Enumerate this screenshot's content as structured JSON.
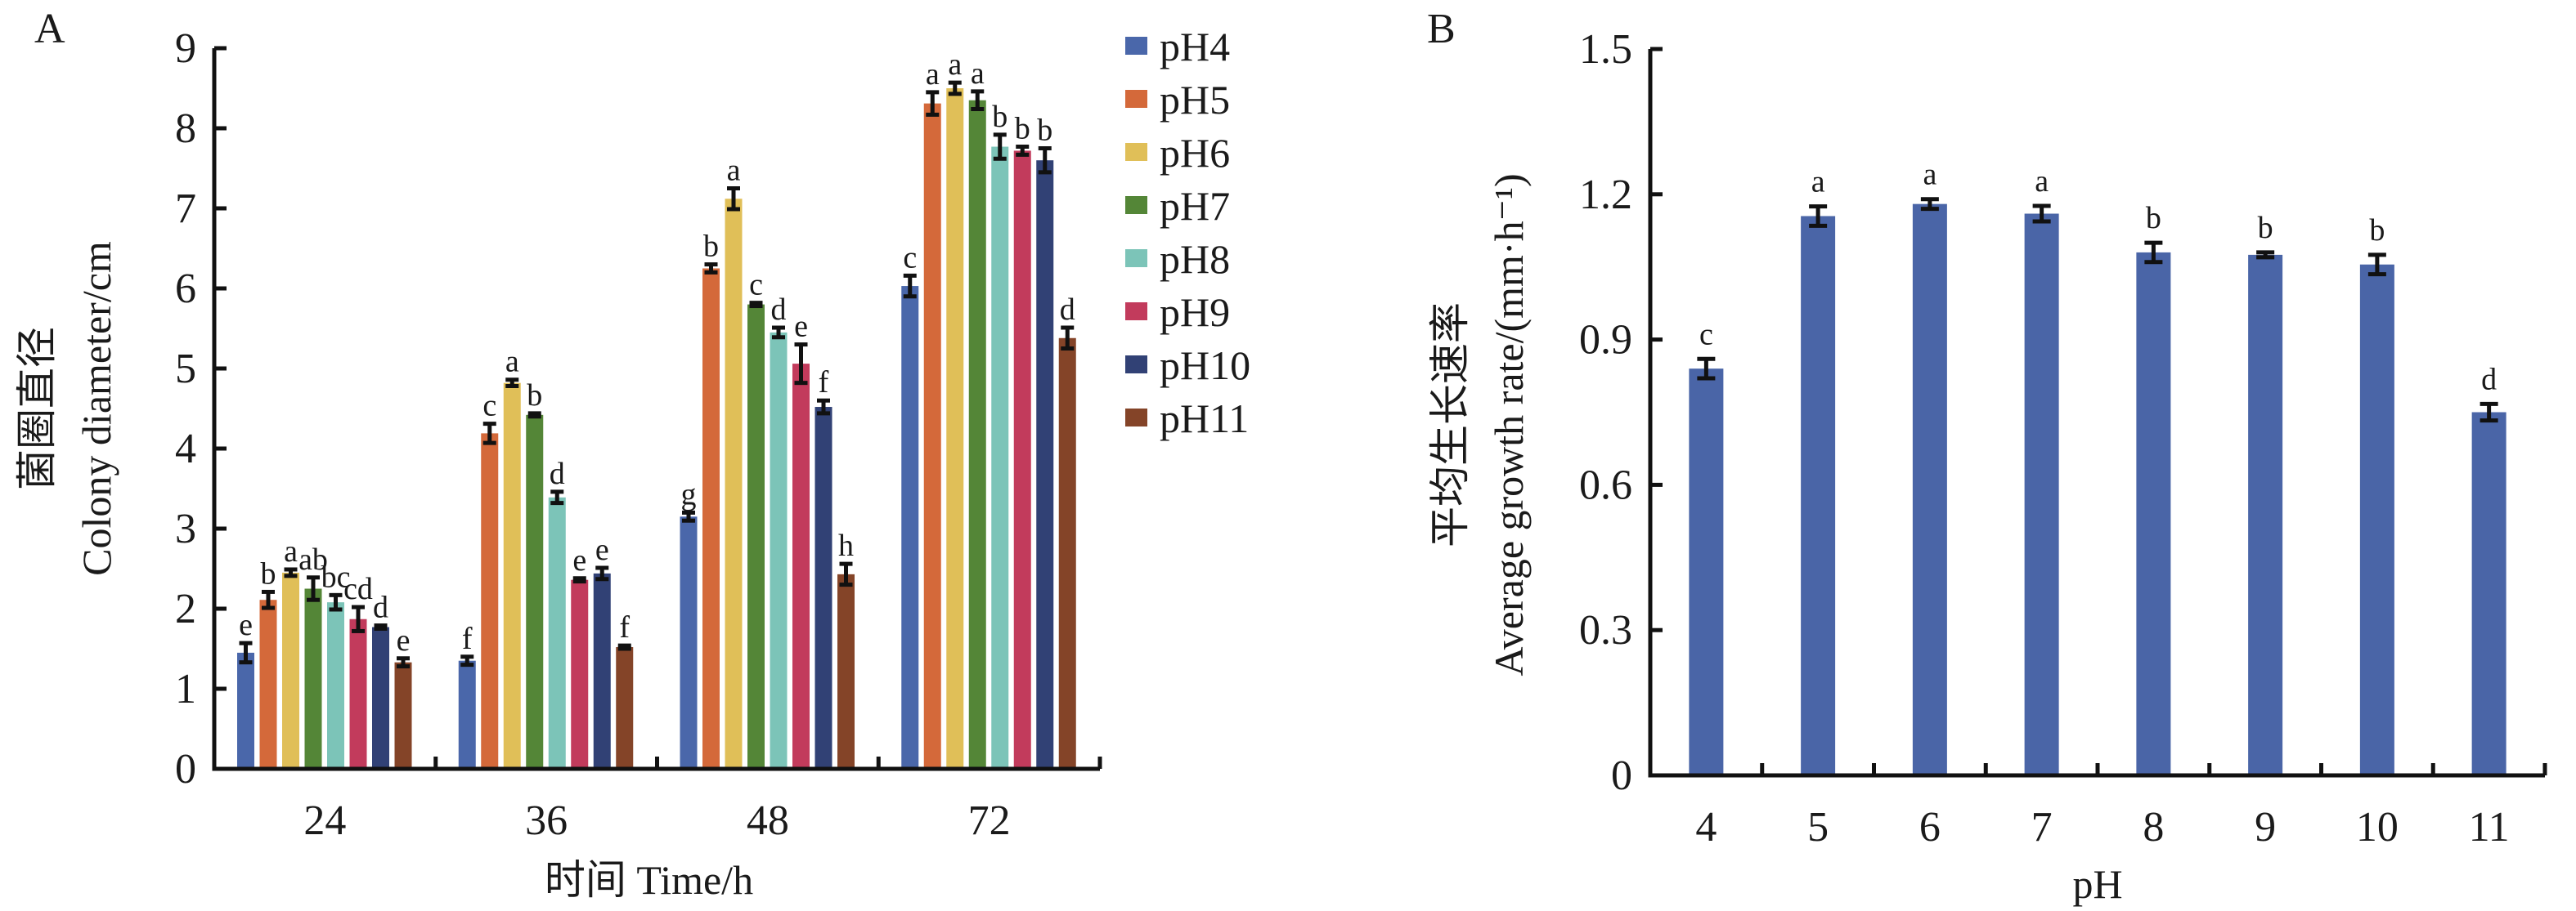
{
  "chart_data": [
    {
      "id": "A",
      "type": "bar",
      "panel_label": "A",
      "title": "",
      "xlabel": "时间 Time/h",
      "ylabel_lines": [
        "菌圈直径",
        "Colony diameter/cm"
      ],
      "categories": [
        "24",
        "36",
        "48",
        "72"
      ],
      "ylim": [
        0,
        9
      ],
      "yticks": [
        "0",
        "1",
        "2",
        "3",
        "4",
        "5",
        "6",
        "7",
        "8",
        "9"
      ],
      "grid": false,
      "legend_position": "right",
      "series": [
        {
          "name": "pH4",
          "color": "#4a67aa",
          "values": [
            1.45,
            1.35,
            3.15,
            6.03
          ],
          "errors": [
            0.12,
            0.05,
            0.05,
            0.13
          ],
          "letters": [
            "e",
            "f",
            "g",
            "c"
          ]
        },
        {
          "name": "pH5",
          "color": "#d4693a",
          "values": [
            2.11,
            4.19,
            6.25,
            8.31
          ],
          "errors": [
            0.1,
            0.12,
            0.05,
            0.14
          ],
          "letters": [
            "b",
            "c",
            "b",
            "a"
          ]
        },
        {
          "name": "pH6",
          "color": "#e0bf58",
          "values": [
            2.45,
            4.82,
            7.12,
            8.5
          ],
          "errors": [
            0.04,
            0.04,
            0.13,
            0.07
          ],
          "letters": [
            "a",
            "a",
            "a",
            "a"
          ]
        },
        {
          "name": "pH7",
          "color": "#548637",
          "values": [
            2.25,
            4.42,
            5.8,
            8.35
          ],
          "errors": [
            0.14,
            0.02,
            0.02,
            0.11
          ],
          "letters": [
            "ab",
            "b",
            "c",
            "a"
          ]
        },
        {
          "name": "pH8",
          "color": "#7cc4b8",
          "values": [
            2.08,
            3.39,
            5.45,
            7.77
          ],
          "errors": [
            0.09,
            0.07,
            0.06,
            0.15
          ],
          "letters": [
            "bc",
            "d",
            "d",
            "b"
          ]
        },
        {
          "name": "pH9",
          "color": "#c23b5c",
          "values": [
            1.87,
            2.36,
            5.06,
            7.72
          ],
          "errors": [
            0.15,
            0.02,
            0.24,
            0.05
          ],
          "letters": [
            "cd",
            "e",
            "e",
            "b"
          ]
        },
        {
          "name": "pH10",
          "color": "#314175",
          "values": [
            1.77,
            2.44,
            4.52,
            7.6
          ],
          "errors": [
            0.02,
            0.07,
            0.08,
            0.15
          ],
          "letters": [
            "d",
            "e",
            "f",
            "b"
          ]
        },
        {
          "name": "pH11",
          "color": "#844428",
          "values": [
            1.33,
            1.52,
            2.43,
            5.38
          ],
          "errors": [
            0.05,
            0.02,
            0.13,
            0.13
          ],
          "letters": [
            "e",
            "f",
            "h",
            "d"
          ]
        }
      ]
    },
    {
      "id": "B",
      "type": "bar",
      "panel_label": "B",
      "title": "",
      "xlabel": "pH",
      "ylabel_lines": [
        "平均生长速率",
        "Average growth rate/(mm·h⁻¹)"
      ],
      "categories": [
        "4",
        "5",
        "6",
        "7",
        "8",
        "9",
        "10",
        "11"
      ],
      "ylim": [
        0,
        1.5
      ],
      "yticks": [
        "0",
        "0.3",
        "0.6",
        "0.9",
        "1.2",
        "1.5"
      ],
      "grid": false,
      "legend_position": "none",
      "series": [
        {
          "name": "Average growth rate",
          "color": "#4a65a7",
          "values": [
            0.84,
            1.155,
            1.18,
            1.16,
            1.08,
            1.075,
            1.055,
            0.75
          ],
          "errors": [
            0.02,
            0.02,
            0.01,
            0.016,
            0.02,
            0.005,
            0.02,
            0.017
          ],
          "letters": [
            "c",
            "a",
            "a",
            "a",
            "b",
            "b",
            "b",
            "d"
          ]
        }
      ]
    }
  ]
}
